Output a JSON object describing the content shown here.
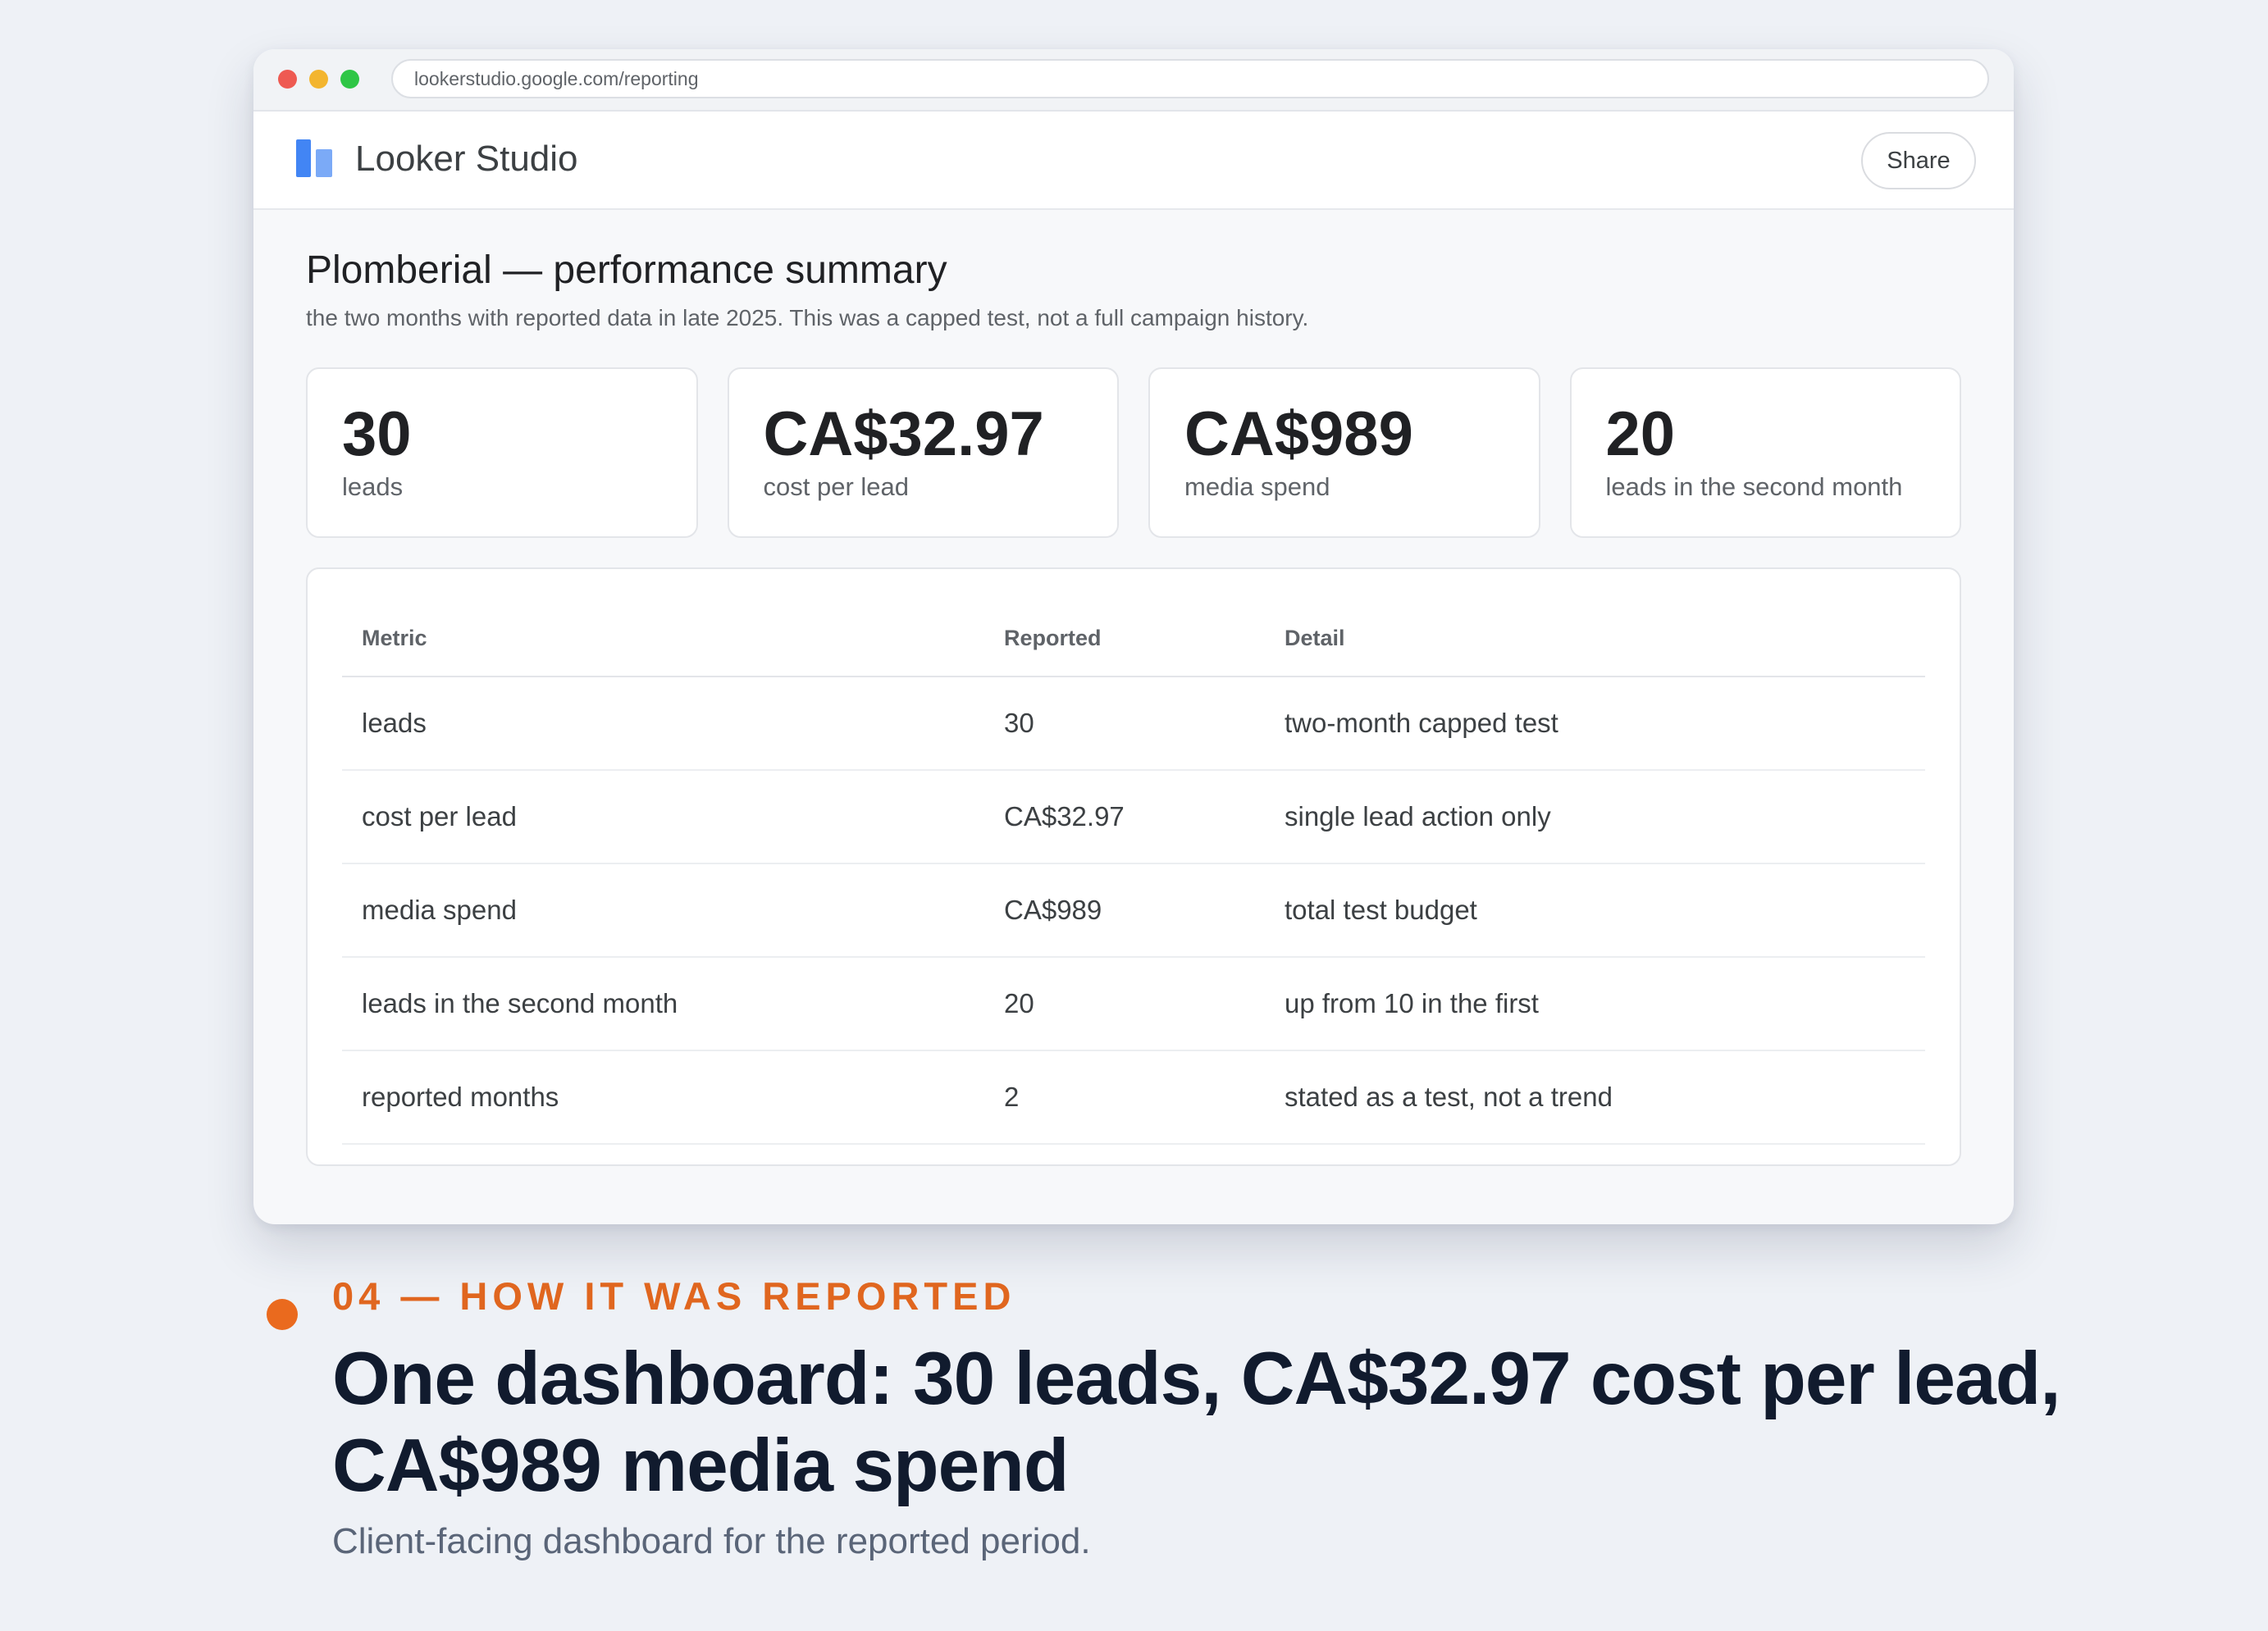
{
  "browser": {
    "url": "lookerstudio.google.com/reporting"
  },
  "app": {
    "name": "Looker Studio",
    "share_label": "Share",
    "brand_color": "#4285f4"
  },
  "report": {
    "title": "Plomberial — performance summary",
    "subtitle": "the two months with reported data in late 2025. This was a capped test, not a full campaign history.",
    "kpis": [
      {
        "value": "30",
        "label": "leads"
      },
      {
        "value": "CA$32.97",
        "label": "cost per lead"
      },
      {
        "value": "CA$989",
        "label": "media spend"
      },
      {
        "value": "20",
        "label": "leads in the second month"
      }
    ],
    "table": {
      "headers": [
        "Metric",
        "Reported",
        "Detail"
      ],
      "rows": [
        [
          "leads",
          "30",
          "two-month capped test"
        ],
        [
          "cost per lead",
          "CA$32.97",
          "single lead action only"
        ],
        [
          "media spend",
          "CA$989",
          "total test budget"
        ],
        [
          "leads in the second month",
          "20",
          "up from 10 in the first"
        ],
        [
          "reported months",
          "2",
          "stated as a test, not a trend"
        ]
      ]
    }
  },
  "caption": {
    "eyebrow": "04 — HOW IT WAS REPORTED",
    "headline_line1": "One dashboard: 30 leads, CA$32.97 cost per lead,",
    "headline_line2": "CA$989 media spend",
    "subcaption": "Client-facing dashboard for the reported period.",
    "accent_color": "#e0661f"
  }
}
